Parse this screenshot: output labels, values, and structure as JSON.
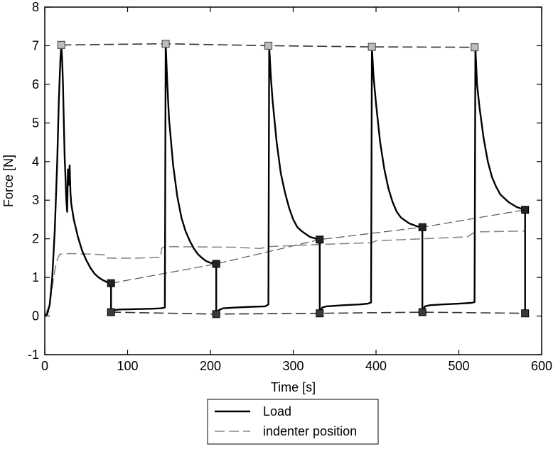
{
  "chart_data": {
    "type": "line",
    "xlabel": "Time [s]",
    "ylabel": "Force [N]",
    "xlim": [
      0,
      600
    ],
    "ylim": [
      -1,
      8
    ],
    "xticks": [
      0,
      100,
      200,
      300,
      400,
      500,
      600
    ],
    "yticks": [
      -1,
      0,
      1,
      2,
      3,
      4,
      5,
      6,
      7,
      8
    ],
    "grid": false,
    "legend_position": "below-center",
    "series": [
      {
        "name": "Load",
        "color": "#000000",
        "style": "solid",
        "points": [
          [
            0,
            0
          ],
          [
            3,
            0.05
          ],
          [
            6,
            0.3
          ],
          [
            9,
            1.0
          ],
          [
            12,
            2.2
          ],
          [
            15,
            4.0
          ],
          [
            17,
            5.6
          ],
          [
            19,
            6.7
          ],
          [
            20,
            7.0
          ],
          [
            21,
            6.6
          ],
          [
            22,
            6.0
          ],
          [
            23,
            5.0
          ],
          [
            24,
            4.1
          ],
          [
            25,
            3.6
          ],
          [
            26,
            3.0
          ],
          [
            27,
            2.7
          ],
          [
            28,
            3.8
          ],
          [
            29,
            3.4
          ],
          [
            30,
            3.9
          ],
          [
            31,
            3.2
          ],
          [
            32,
            2.9
          ],
          [
            35,
            2.5
          ],
          [
            40,
            2.05
          ],
          [
            45,
            1.7
          ],
          [
            50,
            1.45
          ],
          [
            55,
            1.25
          ],
          [
            60,
            1.1
          ],
          [
            65,
            1.0
          ],
          [
            70,
            0.93
          ],
          [
            75,
            0.88
          ],
          [
            80,
            0.85
          ],
          [
            80,
            0.12
          ],
          [
            83,
            0.15
          ],
          [
            90,
            0.17
          ],
          [
            110,
            0.18
          ],
          [
            130,
            0.19
          ],
          [
            140,
            0.2
          ],
          [
            145,
            0.22
          ],
          [
            146,
            7.05
          ],
          [
            148,
            6.0
          ],
          [
            150,
            5.1
          ],
          [
            155,
            3.9
          ],
          [
            160,
            3.1
          ],
          [
            165,
            2.55
          ],
          [
            170,
            2.2
          ],
          [
            175,
            1.95
          ],
          [
            180,
            1.75
          ],
          [
            185,
            1.6
          ],
          [
            190,
            1.5
          ],
          [
            195,
            1.42
          ],
          [
            200,
            1.38
          ],
          [
            207,
            1.35
          ],
          [
            207,
            0.05
          ],
          [
            210,
            0.15
          ],
          [
            215,
            0.2
          ],
          [
            230,
            0.22
          ],
          [
            250,
            0.24
          ],
          [
            266,
            0.25
          ],
          [
            270,
            0.3
          ],
          [
            271,
            7.0
          ],
          [
            273,
            6.2
          ],
          [
            275,
            5.6
          ],
          [
            280,
            4.5
          ],
          [
            285,
            3.7
          ],
          [
            290,
            3.2
          ],
          [
            295,
            2.8
          ],
          [
            300,
            2.5
          ],
          [
            305,
            2.3
          ],
          [
            310,
            2.2
          ],
          [
            320,
            2.05
          ],
          [
            328,
            2.0
          ],
          [
            332,
            1.98
          ],
          [
            332,
            0.07
          ],
          [
            335,
            0.22
          ],
          [
            340,
            0.25
          ],
          [
            360,
            0.28
          ],
          [
            380,
            0.3
          ],
          [
            390,
            0.32
          ],
          [
            394,
            0.35
          ],
          [
            395,
            6.95
          ],
          [
            397,
            6.2
          ],
          [
            400,
            5.5
          ],
          [
            405,
            4.5
          ],
          [
            410,
            3.8
          ],
          [
            415,
            3.3
          ],
          [
            420,
            2.95
          ],
          [
            425,
            2.7
          ],
          [
            430,
            2.55
          ],
          [
            440,
            2.4
          ],
          [
            450,
            2.32
          ],
          [
            456,
            2.3
          ],
          [
            456,
            0.1
          ],
          [
            459,
            0.25
          ],
          [
            465,
            0.28
          ],
          [
            480,
            0.3
          ],
          [
            500,
            0.32
          ],
          [
            515,
            0.34
          ],
          [
            519,
            0.36
          ],
          [
            520,
            6.95
          ],
          [
            522,
            6.0
          ],
          [
            525,
            5.4
          ],
          [
            530,
            4.6
          ],
          [
            535,
            4.0
          ],
          [
            540,
            3.6
          ],
          [
            545,
            3.35
          ],
          [
            550,
            3.15
          ],
          [
            560,
            2.95
          ],
          [
            570,
            2.82
          ],
          [
            580,
            2.75
          ],
          [
            580,
            0.07
          ]
        ]
      },
      {
        "name": "indenter position",
        "color": "#888888",
        "style": "dashed",
        "points": [
          [
            0,
            0
          ],
          [
            6,
            0.3
          ],
          [
            10,
            0.9
          ],
          [
            14,
            1.4
          ],
          [
            18,
            1.6
          ],
          [
            30,
            1.62
          ],
          [
            60,
            1.6
          ],
          [
            75,
            1.58
          ],
          [
            76,
            1.5
          ],
          [
            110,
            1.5
          ],
          [
            140,
            1.52
          ],
          [
            141,
            1.75
          ],
          [
            145,
            1.8
          ],
          [
            230,
            1.78
          ],
          [
            260,
            1.75
          ],
          [
            271,
            1.8
          ],
          [
            330,
            1.85
          ],
          [
            395,
            1.9
          ],
          [
            400,
            1.95
          ],
          [
            456,
            2.0
          ],
          [
            510,
            2.05
          ],
          [
            520,
            2.18
          ],
          [
            575,
            2.2
          ],
          [
            580,
            2.2
          ]
        ]
      }
    ],
    "annotations": {
      "peak_markers": [
        [
          20,
          7.02
        ],
        [
          146,
          7.05
        ],
        [
          270,
          7.0
        ],
        [
          395,
          6.97
        ],
        [
          519,
          6.96
        ]
      ],
      "relaxed_markers": [
        [
          80,
          0.85
        ],
        [
          207,
          1.35
        ],
        [
          332,
          1.98
        ],
        [
          456,
          2.3
        ],
        [
          580,
          2.75
        ]
      ],
      "base_markers": [
        [
          80,
          0.1
        ],
        [
          207,
          0.05
        ],
        [
          332,
          0.07
        ],
        [
          456,
          0.1
        ],
        [
          580,
          0.07
        ]
      ],
      "peak_envelope": [
        [
          20,
          7.02
        ],
        [
          146,
          7.05
        ],
        [
          270,
          7.0
        ],
        [
          395,
          6.97
        ],
        [
          519,
          6.96
        ]
      ],
      "relaxed_envelope": [
        [
          80,
          0.85
        ],
        [
          207,
          1.35
        ],
        [
          332,
          1.98
        ],
        [
          456,
          2.3
        ],
        [
          580,
          2.75
        ]
      ],
      "base_envelope": [
        [
          80,
          0.1
        ],
        [
          207,
          0.05
        ],
        [
          332,
          0.07
        ],
        [
          456,
          0.1
        ],
        [
          580,
          0.07
        ]
      ]
    }
  }
}
